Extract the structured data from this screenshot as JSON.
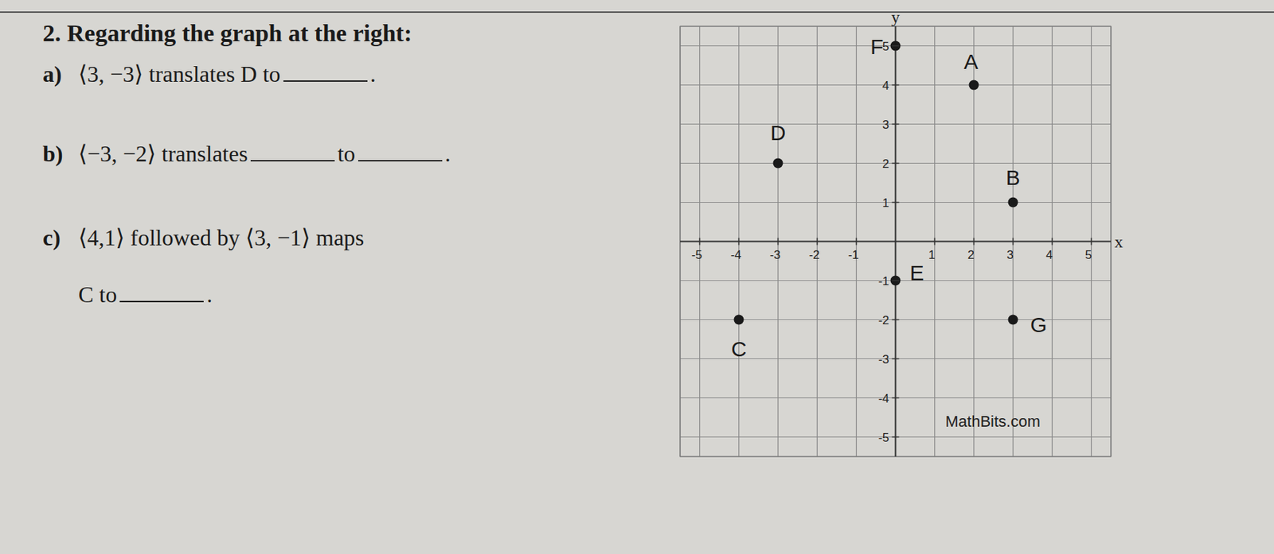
{
  "document": {
    "title": "2. Regarding the graph at the right:",
    "questions": [
      {
        "label": "a)",
        "lines": [
          [
            "⟨3, −3⟩ translates D to",
            "."
          ]
        ]
      },
      {
        "label": "b)",
        "lines": [
          [
            "⟨−3, −2⟩ translates",
            "to",
            "."
          ]
        ]
      },
      {
        "label": "c)",
        "lines": [
          [
            "⟨4,1⟩ followed by ⟨3, −1⟩ maps"
          ],
          [
            "C to",
            "."
          ]
        ]
      }
    ]
  },
  "chart_data": {
    "type": "scatter",
    "x_label": "x",
    "y_label": "y",
    "points": [
      {
        "label": "A",
        "x": 2,
        "y": 4
      },
      {
        "label": "B",
        "x": 3,
        "y": 1
      },
      {
        "label": "C",
        "x": -4,
        "y": -2
      },
      {
        "label": "D",
        "x": -3,
        "y": 2
      },
      {
        "label": "E",
        "x": 0,
        "y": -1
      },
      {
        "label": "F",
        "x": 0,
        "y": 5
      },
      {
        "label": "G",
        "x": 3,
        "y": -2
      }
    ],
    "color": "#1a1a1a",
    "xlim": [
      -5.5,
      5.5
    ],
    "ylim": [
      -5.5,
      5.5
    ],
    "xticks": [
      -5,
      -4,
      -3,
      -2,
      -1,
      1,
      2,
      3,
      4,
      5
    ],
    "yticks": [
      -5,
      -4,
      -3,
      -2,
      -1,
      1,
      2,
      3,
      4,
      5
    ],
    "grid": true,
    "annotations": [
      "MathBits.com"
    ]
  }
}
